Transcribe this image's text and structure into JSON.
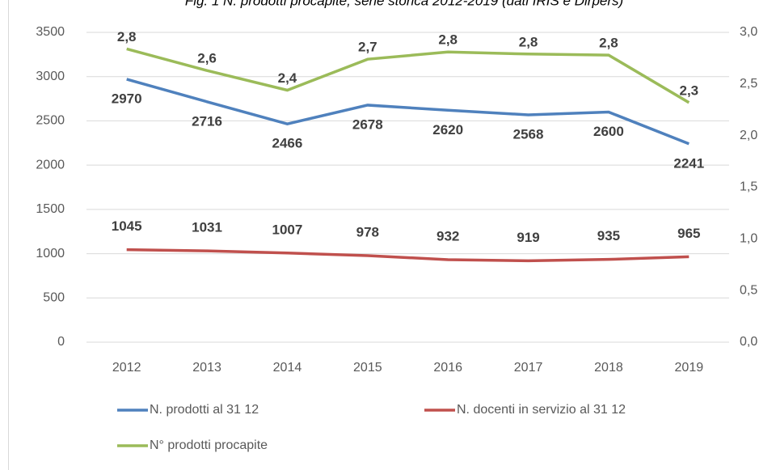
{
  "chart_data": {
    "type": "line",
    "title": "Fig. 1 N. prodotti procapite, serie storica 2012-2019 (dati IRIS e Dirpers)",
    "categories": [
      "2012",
      "2013",
      "2014",
      "2015",
      "2016",
      "2017",
      "2018",
      "2019"
    ],
    "series": [
      {
        "name": "N. prodotti al 31 12",
        "color": "#4f81bd",
        "values": [
          2970,
          2716,
          2466,
          2678,
          2620,
          2568,
          2600,
          2241
        ]
      },
      {
        "name": "N. docenti in servizio al 31 12",
        "color": "#c0504d",
        "values": [
          1045,
          1031,
          1007,
          978,
          932,
          919,
          935,
          965
        ]
      },
      {
        "name": "N° prodotti procapite",
        "color": "#9bbb59",
        "axis": "y2",
        "values": [
          2.84,
          2.63,
          2.44,
          2.74,
          2.81,
          2.79,
          2.78,
          2.32
        ],
        "value_labels": [
          "2,8",
          "2,6",
          "2,4",
          "2,7",
          "2,8",
          "2,8",
          "2,8",
          "2,3"
        ]
      }
    ],
    "ylim": [
      0,
      3500
    ],
    "yticks": [
      0,
      500,
      1000,
      1500,
      2000,
      2500,
      3000,
      3500
    ],
    "y2lim": [
      0,
      3
    ],
    "y2ticks": [
      {
        "value": 0,
        "label": "0,0"
      },
      {
        "value": 0.5,
        "label": "0,5"
      },
      {
        "value": 1,
        "label": "1,0"
      },
      {
        "value": 1.5,
        "label": "1,5"
      },
      {
        "value": 2,
        "label": "2,0"
      },
      {
        "value": 2.5,
        "label": "2,5"
      },
      {
        "value": 3,
        "label": "3,0"
      }
    ],
    "legend": "bottom"
  }
}
